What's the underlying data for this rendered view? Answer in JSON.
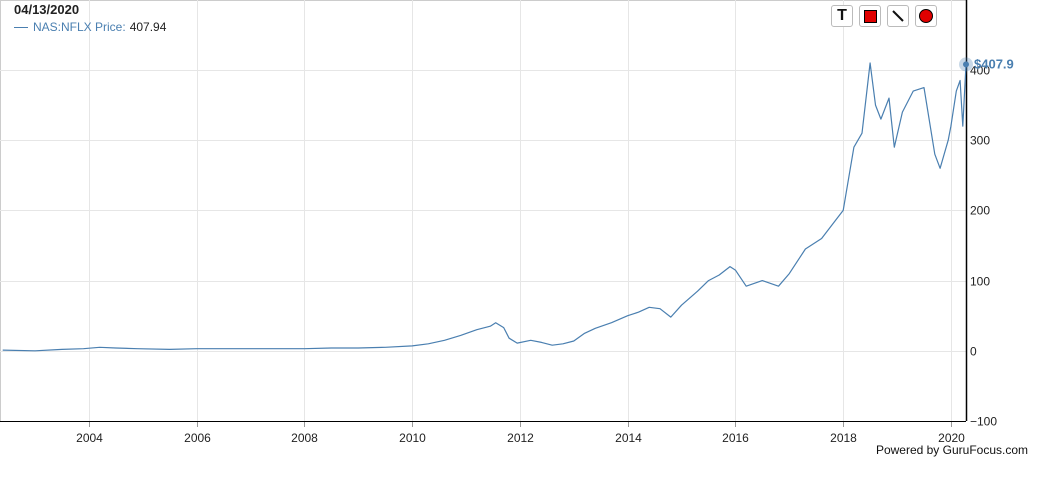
{
  "header": {
    "date": "04/13/2020"
  },
  "legend": {
    "name": "NAS:NFLX Price:",
    "value": "407.94"
  },
  "last_value_label": "$407.9",
  "credit": "Powered by GuruFocus.com",
  "toolbar": [
    {
      "name": "text-tool-icon"
    },
    {
      "name": "rectangle-tool-icon"
    },
    {
      "name": "line-tool-icon"
    },
    {
      "name": "circle-tool-icon"
    }
  ],
  "colors": {
    "series": "#4a7fb0",
    "grid": "#e6e6e6",
    "axis": "#000000"
  },
  "chart_data": {
    "type": "line",
    "title": "",
    "xlabel": "",
    "ylabel": "",
    "xlim": [
      2002.35,
      2020.28
    ],
    "ylim": [
      -100,
      400
    ],
    "y_axis_side": "right",
    "grid": true,
    "x_ticks": [
      2004,
      2006,
      2008,
      2010,
      2012,
      2014,
      2016,
      2018,
      2020
    ],
    "y_ticks": [
      -100,
      0,
      100,
      200,
      300,
      400
    ],
    "x_tick_labels": [
      "2004",
      "2006",
      "2008",
      "2010",
      "2012",
      "2014",
      "2016",
      "2018",
      "2020"
    ],
    "y_tick_labels": [
      "−100",
      "0",
      "100",
      "200",
      "300",
      "400"
    ],
    "series": [
      {
        "name": "NAS:NFLX Price",
        "x": [
          2002.4,
          2003.0,
          2003.5,
          2003.9,
          2004.2,
          2004.5,
          2004.9,
          2005.5,
          2006.0,
          2006.5,
          2007.0,
          2007.5,
          2008.0,
          2008.5,
          2009.0,
          2009.5,
          2010.0,
          2010.3,
          2010.6,
          2010.9,
          2011.2,
          2011.45,
          2011.55,
          2011.7,
          2011.8,
          2011.95,
          2012.2,
          2012.4,
          2012.6,
          2012.8,
          2013.0,
          2013.2,
          2013.4,
          2013.7,
          2014.0,
          2014.2,
          2014.4,
          2014.6,
          2014.8,
          2015.0,
          2015.3,
          2015.5,
          2015.7,
          2015.9,
          2016.0,
          2016.2,
          2016.5,
          2016.8,
          2017.0,
          2017.3,
          2017.6,
          2017.9,
          2018.0,
          2018.2,
          2018.35,
          2018.5,
          2018.6,
          2018.7,
          2018.85,
          2018.95,
          2019.1,
          2019.3,
          2019.5,
          2019.7,
          2019.8,
          2019.95,
          2020.0,
          2020.1,
          2020.17,
          2020.22,
          2020.28
        ],
        "y": [
          1,
          0,
          2,
          3,
          5,
          4,
          3,
          2,
          3,
          3,
          3,
          3,
          3,
          4,
          4,
          5,
          7,
          10,
          15,
          22,
          30,
          35,
          40,
          33,
          18,
          11,
          15,
          12,
          8,
          10,
          14,
          25,
          32,
          40,
          50,
          55,
          62,
          60,
          48,
          65,
          85,
          100,
          108,
          120,
          115,
          92,
          100,
          92,
          110,
          145,
          160,
          190,
          200,
          290,
          310,
          410,
          350,
          330,
          360,
          290,
          340,
          370,
          375,
          280,
          260,
          300,
          320,
          370,
          385,
          320,
          407.94
        ]
      }
    ]
  }
}
